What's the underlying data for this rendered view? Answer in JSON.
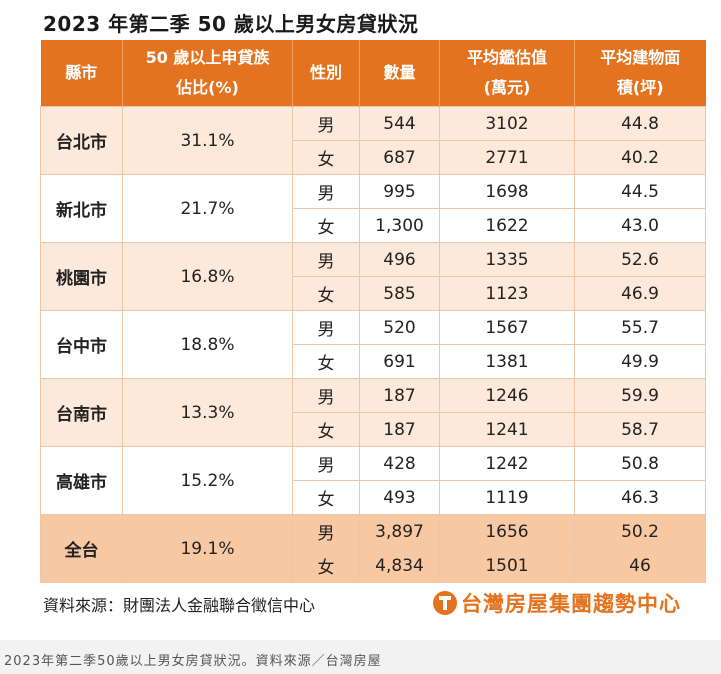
{
  "title": "2023 年第二季 50 歲以上男女房貸狀況",
  "headers": {
    "city": "縣市",
    "share_line1": "50 歲以上申貸族",
    "share_line2": "佔比(%)",
    "gender": "性別",
    "count": "數量",
    "appraisal_line1": "平均鑑估值",
    "appraisal_line2": "(萬元)",
    "area_line1": "平均建物面",
    "area_line2": "積(坪)"
  },
  "rows": [
    {
      "city": "台北市",
      "share": "31.1%",
      "male": {
        "gender": "男",
        "count": "544",
        "appraisal": "3102",
        "area": "44.8"
      },
      "female": {
        "gender": "女",
        "count": "687",
        "appraisal": "2771",
        "area": "40.2"
      }
    },
    {
      "city": "新北市",
      "share": "21.7%",
      "male": {
        "gender": "男",
        "count": "995",
        "appraisal": "1698",
        "area": "44.5"
      },
      "female": {
        "gender": "女",
        "count": "1,300",
        "appraisal": "1622",
        "area": "43.0"
      }
    },
    {
      "city": "桃園市",
      "share": "16.8%",
      "male": {
        "gender": "男",
        "count": "496",
        "appraisal": "1335",
        "area": "52.6"
      },
      "female": {
        "gender": "女",
        "count": "585",
        "appraisal": "1123",
        "area": "46.9"
      }
    },
    {
      "city": "台中市",
      "share": "18.8%",
      "male": {
        "gender": "男",
        "count": "520",
        "appraisal": "1567",
        "area": "55.7"
      },
      "female": {
        "gender": "女",
        "count": "691",
        "appraisal": "1381",
        "area": "49.9"
      }
    },
    {
      "city": "台南市",
      "share": "13.3%",
      "male": {
        "gender": "男",
        "count": "187",
        "appraisal": "1246",
        "area": "59.9"
      },
      "female": {
        "gender": "女",
        "count": "187",
        "appraisal": "1241",
        "area": "58.7"
      }
    },
    {
      "city": "高雄市",
      "share": "15.2%",
      "male": {
        "gender": "男",
        "count": "428",
        "appraisal": "1242",
        "area": "50.8"
      },
      "female": {
        "gender": "女",
        "count": "493",
        "appraisal": "1119",
        "area": "46.3"
      }
    },
    {
      "city": "全台",
      "share": "19.1%",
      "male": {
        "gender": "男",
        "count": "3,897",
        "appraisal": "1656",
        "area": "50.2"
      },
      "female": {
        "gender": "女",
        "count": "4,834",
        "appraisal": "1501",
        "area": "46"
      }
    }
  ],
  "highlight_color": "#d9262b",
  "accent_color": "#e3731f",
  "source": "資料來源：財團法人金融聯合徵信中心",
  "logo_text": "台灣房屋集團趨勢中心",
  "caption": "2023年第二季50歲以上男女房貸狀況。資料來源／台灣房屋"
}
